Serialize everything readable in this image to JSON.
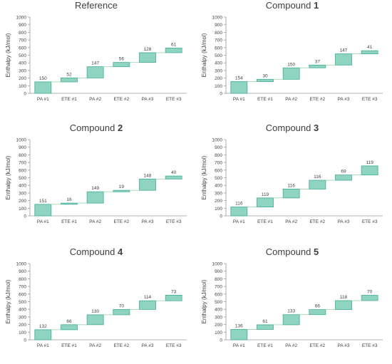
{
  "colors": {
    "bar_fill": "#8fd4c1",
    "bar_edge": "#3fae95",
    "connector": "#9fd3a8",
    "axis": "#9a9a9a",
    "text": "#404040"
  },
  "chart_data": [
    {
      "type": "bar",
      "title": "Reference",
      "title_bold": "",
      "ylabel": "Enthalpy (kJ/mol)",
      "xlabel": "",
      "ylim": [
        0,
        1000
      ],
      "yticks": [
        "0",
        "100",
        "200",
        "300",
        "400",
        "500",
        "600",
        "700",
        "800",
        "900",
        "1000"
      ],
      "categories": [
        "PA #1",
        "ETE #1",
        "PA #2",
        "ETE #2",
        "PA #3",
        "ETE #3"
      ],
      "values": [
        150,
        52,
        147,
        56,
        128,
        61
      ],
      "grid": false
    },
    {
      "type": "bar",
      "title": "Compound ",
      "title_bold": "1",
      "ylabel": "Enthalpy (kJ/mol)",
      "xlabel": "",
      "ylim": [
        0,
        1000
      ],
      "yticks": [
        "0",
        "100",
        "200",
        "300",
        "400",
        "500",
        "600",
        "700",
        "800",
        "900",
        "1000"
      ],
      "categories": [
        "PA #1",
        "ETE #1",
        "PA #2",
        "ETE #2",
        "PA #3",
        "ETE #3"
      ],
      "values": [
        154,
        30,
        150,
        37,
        147,
        41
      ],
      "grid": false
    },
    {
      "type": "bar",
      "title": "Compound ",
      "title_bold": "2",
      "ylabel": "Enthalpy (kJ/mol)",
      "xlabel": "",
      "ylim": [
        0,
        1000
      ],
      "yticks": [
        "0",
        "100",
        "200",
        "300",
        "400",
        "500",
        "600",
        "700",
        "800",
        "900",
        "1000"
      ],
      "categories": [
        "PA #1",
        "ETE #1",
        "PA #2",
        "ETE #2",
        "PA #3",
        "ETE #3"
      ],
      "values": [
        151,
        16,
        149,
        19,
        148,
        40
      ],
      "grid": false
    },
    {
      "type": "bar",
      "title": "Compound ",
      "title_bold": "3",
      "ylabel": "Enthalpy (kJ/mol)",
      "xlabel": "",
      "ylim": [
        0,
        1000
      ],
      "yticks": [
        "0",
        "100",
        "200",
        "300",
        "400",
        "500",
        "600",
        "700",
        "800",
        "900",
        "1000"
      ],
      "categories": [
        "PA #1",
        "ETE #1",
        "PA #2",
        "ETE #2",
        "PA #3",
        "ETE #3"
      ],
      "values": [
        116,
        119,
        116,
        116,
        69,
        119
      ],
      "grid": false
    },
    {
      "type": "bar",
      "title": "Compound ",
      "title_bold": "4",
      "ylabel": "Enthalpy (kJ/mol)",
      "xlabel": "",
      "ylim": [
        0,
        1000
      ],
      "yticks": [
        "0",
        "100",
        "200",
        "300",
        "400",
        "500",
        "600",
        "700",
        "800",
        "900",
        "1000"
      ],
      "categories": [
        "PA #1",
        "ETE #1",
        "PA #2",
        "ETE #2",
        "PA #3",
        "ETE #3"
      ],
      "values": [
        132,
        66,
        130,
        70,
        114,
        73
      ],
      "grid": false
    },
    {
      "type": "bar",
      "title": "Compound ",
      "title_bold": "5",
      "ylabel": "Enthalpy (kJ/mol)",
      "xlabel": "",
      "ylim": [
        0,
        1000
      ],
      "yticks": [
        "0",
        "100",
        "200",
        "300",
        "400",
        "500",
        "600",
        "700",
        "800",
        "900",
        "1000"
      ],
      "categories": [
        "PA #1",
        "ETE #1",
        "PA #2",
        "ETE #2",
        "PA #3",
        "ETE #3"
      ],
      "values": [
        136,
        61,
        133,
        66,
        118,
        70
      ],
      "grid": false
    }
  ]
}
